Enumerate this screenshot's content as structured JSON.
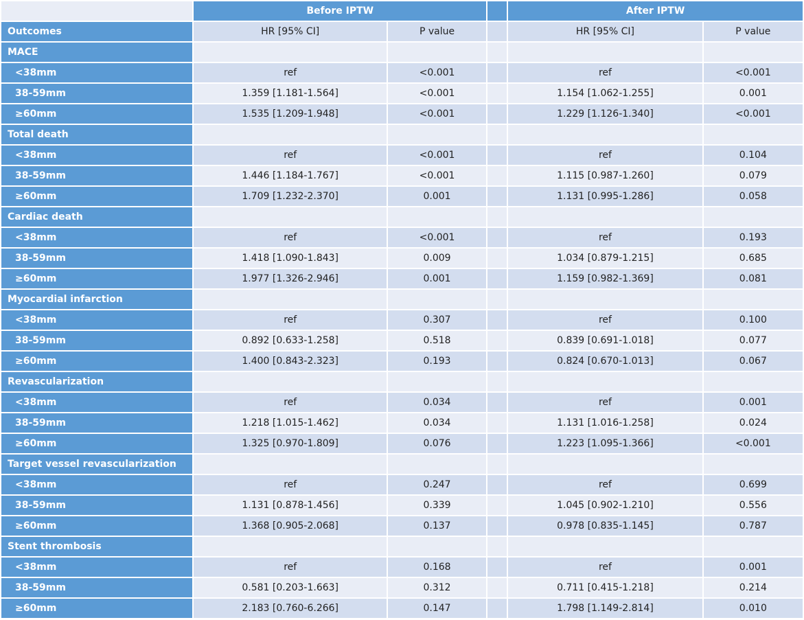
{
  "header": {
    "before": "Before IPTW",
    "after": "After IPTW"
  },
  "columns": [
    "Outcomes",
    "HR [95% CI]",
    "P value",
    "HR [95% CI]",
    "P value"
  ],
  "groups": [
    {
      "name": "MACE",
      "rows": [
        [
          "<38mm",
          "ref",
          "<0.001",
          "ref",
          "<0.001"
        ],
        [
          "38-59mm",
          "1.359 [1.181-1.564]",
          "<0.001",
          "1.154 [1.062-1.255]",
          "0.001"
        ],
        [
          "≥60mm",
          "1.535 [1.209-1.948]",
          "<0.001",
          "1.229 [1.126-1.340]",
          "<0.001"
        ]
      ]
    },
    {
      "name": "Total death",
      "rows": [
        [
          "<38mm",
          "ref",
          "<0.001",
          "ref",
          "0.104"
        ],
        [
          "38-59mm",
          "1.446 [1.184-1.767]",
          "<0.001",
          "1.115 [0.987-1.260]",
          "0.079"
        ],
        [
          "≥60mm",
          "1.709 [1.232-2.370]",
          "0.001",
          "1.131 [0.995-1.286]",
          "0.058"
        ]
      ]
    },
    {
      "name": "Cardiac death",
      "rows": [
        [
          "<38mm",
          "ref",
          "<0.001",
          "ref",
          "0.193"
        ],
        [
          "38-59mm",
          "1.418 [1.090-1.843]",
          "0.009",
          "1.034 [0.879-1.215]",
          "0.685"
        ],
        [
          "≥60mm",
          "1.977 [1.326-2.946]",
          "0.001",
          "1.159 [0.982-1.369]",
          "0.081"
        ]
      ]
    },
    {
      "name": "Myocardial infarction",
      "rows": [
        [
          "<38mm",
          "ref",
          "0.307",
          "ref",
          "0.100"
        ],
        [
          "38-59mm",
          "0.892 [0.633-1.258]",
          "0.518",
          "0.839 [0.691-1.018]",
          "0.077"
        ],
        [
          "≥60mm",
          "1.400 [0.843-2.323]",
          "0.193",
          "0.824 [0.670-1.013]",
          "0.067"
        ]
      ]
    },
    {
      "name": "Revascularization",
      "rows": [
        [
          "<38mm",
          "ref",
          "0.034",
          "ref",
          "0.001"
        ],
        [
          "38-59mm",
          "1.218 [1.015-1.462]",
          "0.034",
          "1.131 [1.016-1.258]",
          "0.024"
        ],
        [
          "≥60mm",
          "1.325 [0.970-1.809]",
          "0.076",
          "1.223 [1.095-1.366]",
          "<0.001"
        ]
      ]
    },
    {
      "name": "Target vessel revascularization",
      "rows": [
        [
          "<38mm",
          "ref",
          "0.247",
          "ref",
          "0.699"
        ],
        [
          "38-59mm",
          "1.131 [0.878-1.456]",
          "0.339",
          "1.045 [0.902-1.210]",
          "0.556"
        ],
        [
          "≥60mm",
          "1.368 [0.905-2.068]",
          "0.137",
          "0.978 [0.835-1.145]",
          "0.787"
        ]
      ]
    },
    {
      "name": "Stent thrombosis",
      "rows": [
        [
          "<38mm",
          "ref",
          "0.168",
          "ref",
          "0.001"
        ],
        [
          "38-59mm",
          "0.581 [0.203-1.663]",
          "0.312",
          "0.711 [0.415-1.218]",
          "0.214"
        ],
        [
          "≥60mm",
          "2.183 [0.760-6.266]",
          "0.147",
          "1.798 [1.149-2.814]",
          "0.010"
        ]
      ]
    }
  ]
}
